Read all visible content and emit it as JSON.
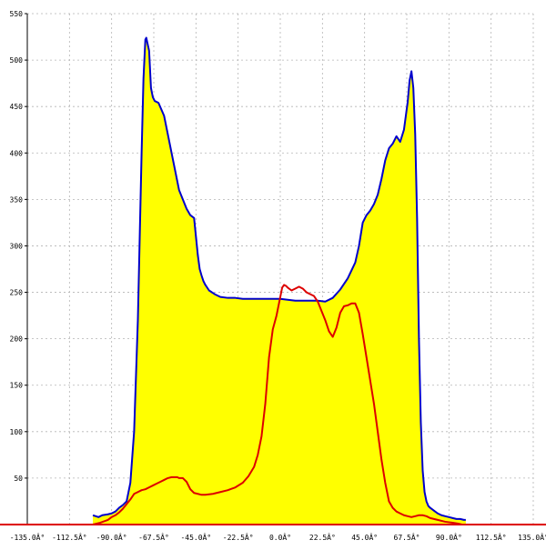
{
  "chart_data": {
    "type": "area",
    "title": "",
    "xlabel": "",
    "ylabel": "",
    "xlim": [
      -135,
      135
    ],
    "ylim": [
      0,
      550
    ],
    "grid": true,
    "x_ticks": [
      -135,
      -112.5,
      -90,
      -67.5,
      -45,
      -22.5,
      0,
      22.5,
      45,
      67.5,
      90,
      112.5,
      135
    ],
    "x_tick_labels": [
      "-135.0Â°",
      "-112.5Â°",
      "-90.0Â°",
      "-67.5Â°",
      "-45.0Â°",
      "-22.5Â°",
      "0.0Â°",
      "22.5Â°",
      "45.0Â°",
      "67.5Â°",
      "90.0Â°",
      "112.5Â°",
      "135.0Â°"
    ],
    "y_ticks": [
      50,
      100,
      150,
      200,
      250,
      300,
      350,
      400,
      450,
      500,
      550
    ],
    "y_tick_labels": [
      "50",
      "100",
      "150",
      "200",
      "250",
      "300",
      "350",
      "400",
      "450",
      "500",
      "550"
    ],
    "series": [
      {
        "color": "#0000cc",
        "fill": "#ffff00",
        "x": [
          -100,
          -97,
          -95,
          -92,
          -90,
          -88,
          -86,
          -84,
          -82,
          -80,
          -78,
          -76,
          -74,
          -73,
          -72,
          -71.5,
          -70,
          -69,
          -68,
          -67,
          -65,
          -62,
          -60,
          -58,
          -56,
          -54,
          -52,
          -50,
          -48,
          -46,
          -44,
          -43,
          -42,
          -41,
          -40,
          -38,
          -35,
          -32,
          -28,
          -24,
          -20,
          -16,
          -12,
          -8,
          -4,
          0,
          4,
          8,
          12,
          16,
          20,
          24,
          28,
          32,
          36,
          40,
          42,
          44,
          46,
          48,
          50,
          52,
          54,
          56,
          58,
          60,
          62,
          64,
          66,
          68,
          69,
          70,
          71,
          72,
          73,
          74,
          75,
          76,
          77,
          78,
          79,
          80,
          82,
          84,
          86,
          88,
          90,
          92,
          94,
          96,
          98,
          99
        ],
        "values": [
          10,
          8,
          10,
          11,
          12,
          14,
          18,
          21,
          25,
          45,
          100,
          220,
          400,
          480,
          522,
          524,
          510,
          470,
          460,
          456,
          454,
          440,
          420,
          400,
          380,
          360,
          350,
          340,
          333,
          330,
          290,
          275,
          268,
          262,
          258,
          252,
          248,
          245,
          244,
          244,
          243,
          243,
          243,
          243,
          243,
          243,
          242,
          241,
          241,
          241,
          241,
          240,
          244,
          253,
          265,
          282,
          300,
          325,
          333,
          338,
          345,
          355,
          372,
          392,
          405,
          410,
          418,
          412,
          425,
          455,
          478,
          488,
          470,
          420,
          330,
          200,
          110,
          58,
          35,
          25,
          20,
          18,
          15,
          12,
          10,
          9,
          8,
          7,
          6,
          6,
          5,
          5
        ]
      },
      {
        "color": "#dd0000",
        "x": [
          -100,
          -96,
          -92,
          -90,
          -88,
          -86,
          -84,
          -82,
          -80,
          -78,
          -76,
          -74,
          -72,
          -70,
          -68,
          -66,
          -64,
          -62,
          -60,
          -58,
          -56,
          -55,
          -54,
          -52,
          -50,
          -48,
          -46,
          -44,
          -42,
          -40,
          -36,
          -32,
          -28,
          -24,
          -20,
          -17,
          -14,
          -12,
          -10,
          -8,
          -6,
          -4,
          -2,
          0,
          1,
          2,
          3,
          4,
          6,
          8,
          10,
          12,
          14,
          16,
          18,
          20,
          22,
          24,
          26,
          28,
          30,
          32,
          34,
          36,
          38,
          40,
          42,
          44,
          46,
          48,
          50,
          52,
          54,
          56,
          58,
          60,
          62,
          64,
          65,
          66,
          68,
          70,
          72,
          74,
          76,
          78,
          80,
          84,
          88,
          92,
          95,
          97,
          99
        ],
        "values": [
          0,
          2,
          5,
          8,
          10,
          13,
          17,
          22,
          27,
          33,
          35,
          37,
          38,
          40,
          42,
          44,
          46,
          48,
          50,
          51,
          51,
          51,
          50,
          50,
          46,
          38,
          34,
          33,
          32,
          32,
          33,
          35,
          37,
          40,
          45,
          52,
          62,
          75,
          95,
          130,
          180,
          210,
          225,
          245,
          255,
          258,
          257,
          255,
          252,
          254,
          256,
          254,
          250,
          248,
          246,
          240,
          230,
          220,
          208,
          202,
          212,
          228,
          235,
          236,
          238,
          238,
          228,
          205,
          180,
          155,
          130,
          100,
          70,
          45,
          25,
          18,
          14,
          12,
          11,
          10,
          9,
          8,
          9,
          10,
          10,
          9,
          7,
          5,
          3,
          2,
          1,
          0,
          0
        ]
      }
    ]
  }
}
